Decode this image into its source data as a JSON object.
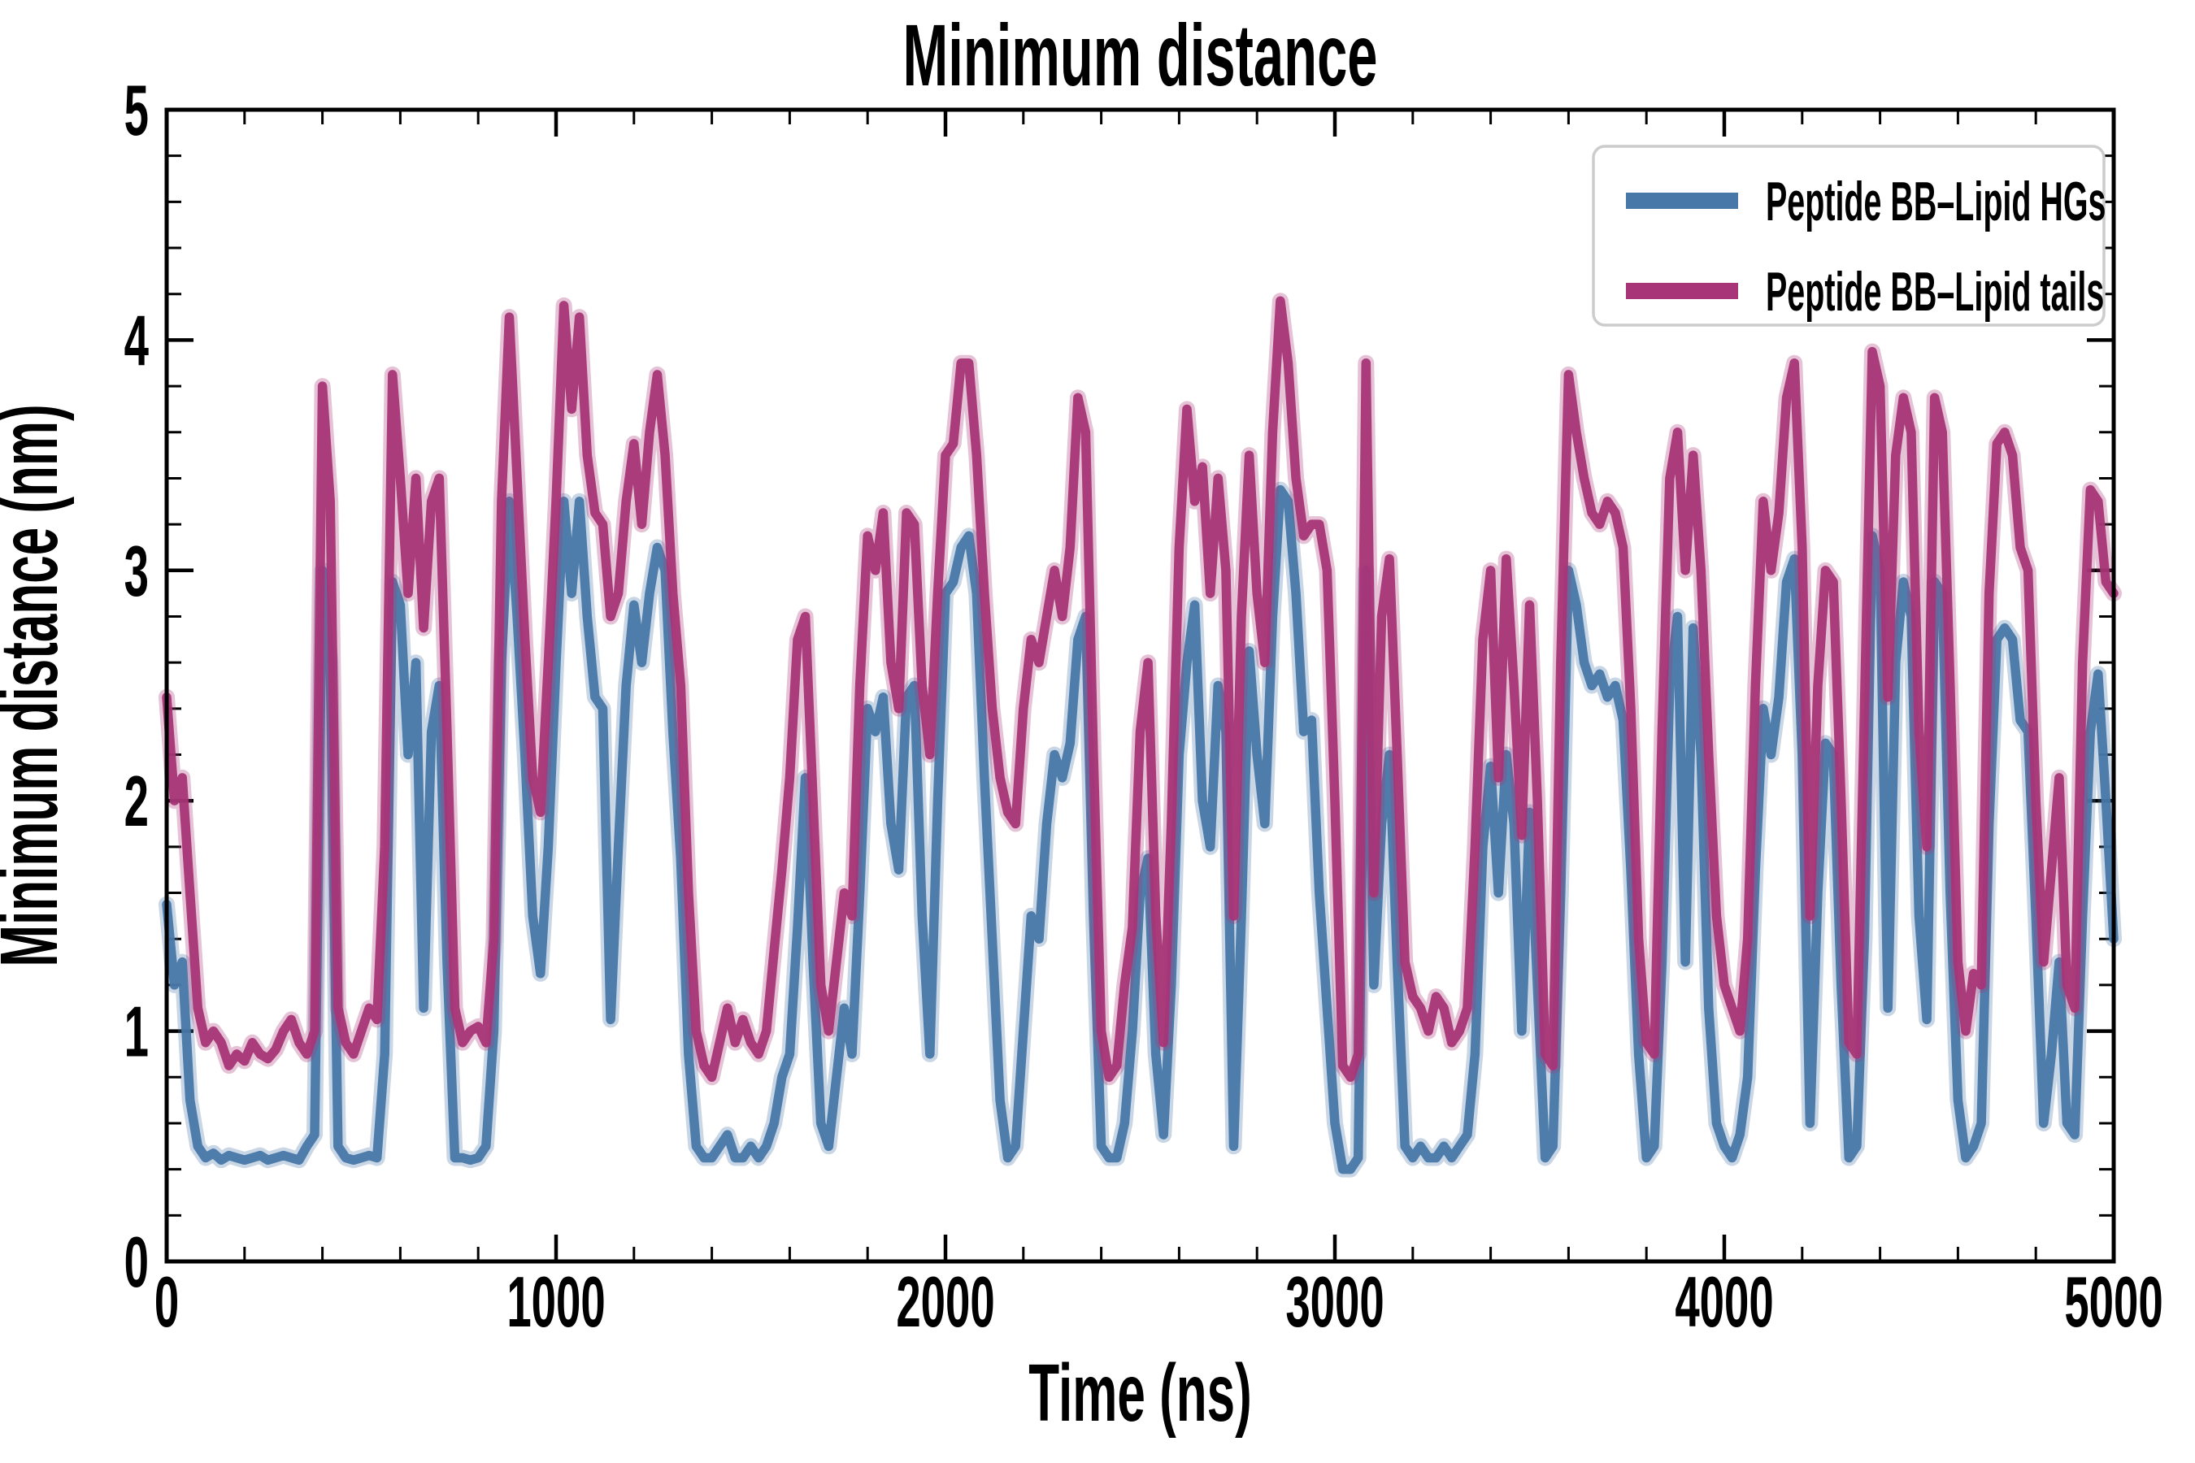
{
  "figure": {
    "title": "Minimum distance",
    "xlabel": "Time (ns)",
    "ylabel": "Minimum distance (nm)"
  },
  "legend": {
    "entries": [
      {
        "label": "Peptide BB–Lipid HGs",
        "color": "#4878a8"
      },
      {
        "label": "Peptide BB–Lipid tails",
        "color": "#a83577"
      }
    ],
    "position": "upper right",
    "border_color": "#cccccc"
  },
  "chart_data": {
    "type": "line",
    "title": "Minimum distance",
    "xlabel": "Time (ns)",
    "ylabel": "Minimum distance (nm)",
    "xlim": [
      0,
      5000
    ],
    "ylim": [
      0,
      5
    ],
    "xticks": [
      0,
      1000,
      2000,
      3000,
      4000,
      5000
    ],
    "yticks": [
      0,
      1,
      2,
      3,
      4,
      5
    ],
    "x_minor_step": 200,
    "y_minor_step": 0.2,
    "grid": false,
    "legend_position": "upper right",
    "x_step_ns": 20,
    "series": [
      {
        "name": "Peptide BB–Lipid HGs",
        "color": "#4878a8",
        "values": [
          1.55,
          1.2,
          1.3,
          0.7,
          0.5,
          0.45,
          0.47,
          0.44,
          0.46,
          0.45,
          0.44,
          0.45,
          0.46,
          0.44,
          0.45,
          0.46,
          0.45,
          0.44,
          0.5,
          0.55,
          3.0,
          2.6,
          0.5,
          0.45,
          0.44,
          0.45,
          0.46,
          0.45,
          0.9,
          2.95,
          2.85,
          2.2,
          2.6,
          1.1,
          2.3,
          2.5,
          1.3,
          0.45,
          0.45,
          0.44,
          0.45,
          0.5,
          1.0,
          2.6,
          3.3,
          2.8,
          2.2,
          1.5,
          1.25,
          1.8,
          2.6,
          3.3,
          2.9,
          3.3,
          2.8,
          2.45,
          2.4,
          1.05,
          1.8,
          2.5,
          2.85,
          2.6,
          2.9,
          3.1,
          3.0,
          2.3,
          1.75,
          0.9,
          0.5,
          0.45,
          0.45,
          0.5,
          0.55,
          0.45,
          0.45,
          0.5,
          0.45,
          0.5,
          0.6,
          0.8,
          0.9,
          1.45,
          2.1,
          1.3,
          0.6,
          0.5,
          0.8,
          1.1,
          0.9,
          1.6,
          2.4,
          2.3,
          2.45,
          1.9,
          1.7,
          2.45,
          2.5,
          1.5,
          0.9,
          2.0,
          2.9,
          2.95,
          3.1,
          3.15,
          2.9,
          2.1,
          1.4,
          0.7,
          0.45,
          0.5,
          1.0,
          1.5,
          1.4,
          1.9,
          2.2,
          2.1,
          2.25,
          2.7,
          2.8,
          1.5,
          0.5,
          0.45,
          0.45,
          0.6,
          1.0,
          1.6,
          1.75,
          0.9,
          0.55,
          1.2,
          2.2,
          2.6,
          2.85,
          2.0,
          1.8,
          2.5,
          2.3,
          0.5,
          1.5,
          2.65,
          2.2,
          1.9,
          2.8,
          3.35,
          3.3,
          2.9,
          2.3,
          2.35,
          1.6,
          1.1,
          0.6,
          0.4,
          0.4,
          0.45,
          3.0,
          1.2,
          1.9,
          2.2,
          1.3,
          0.5,
          0.45,
          0.5,
          0.45,
          0.45,
          0.5,
          0.45,
          0.5,
          0.55,
          0.9,
          1.8,
          2.15,
          1.6,
          2.2,
          1.9,
          1.0,
          1.95,
          1.2,
          0.45,
          0.5,
          1.6,
          3.0,
          2.85,
          2.6,
          2.5,
          2.55,
          2.45,
          2.5,
          2.35,
          1.7,
          0.9,
          0.45,
          0.5,
          1.3,
          2.5,
          2.8,
          1.3,
          2.75,
          2.2,
          1.1,
          0.6,
          0.5,
          0.45,
          0.55,
          0.8,
          1.7,
          2.4,
          2.2,
          2.45,
          2.95,
          3.05,
          2.2,
          0.6,
          1.6,
          2.25,
          2.2,
          1.2,
          0.45,
          0.5,
          1.4,
          3.15,
          3.0,
          1.1,
          2.6,
          2.95,
          2.8,
          1.5,
          1.05,
          2.95,
          2.9,
          1.6,
          0.7,
          0.45,
          0.5,
          0.6,
          1.9,
          2.7,
          2.75,
          2.7,
          2.35,
          2.3,
          1.5,
          0.6,
          0.9,
          1.3,
          0.6,
          0.55,
          1.5,
          2.3,
          2.55,
          2.0,
          1.4
        ]
      },
      {
        "name": "Peptide BB–Lipid tails",
        "color": "#a83577",
        "values": [
          2.45,
          2.0,
          2.1,
          1.6,
          1.1,
          0.95,
          1.0,
          0.95,
          0.85,
          0.9,
          0.87,
          0.95,
          0.9,
          0.88,
          0.92,
          1.0,
          1.05,
          0.95,
          0.9,
          1.0,
          3.8,
          3.3,
          1.1,
          0.95,
          0.9,
          1.0,
          1.1,
          1.05,
          1.8,
          3.85,
          3.4,
          2.9,
          3.4,
          2.75,
          3.3,
          3.4,
          2.3,
          1.1,
          0.95,
          1.0,
          1.02,
          0.95,
          1.4,
          3.3,
          4.1,
          3.4,
          2.7,
          2.1,
          1.95,
          2.6,
          3.3,
          4.15,
          3.7,
          4.1,
          3.5,
          3.25,
          3.2,
          2.8,
          2.9,
          3.3,
          3.55,
          3.2,
          3.6,
          3.85,
          3.5,
          2.9,
          2.5,
          1.6,
          1.0,
          0.85,
          0.8,
          0.95,
          1.1,
          0.95,
          1.05,
          0.95,
          0.9,
          1.0,
          1.35,
          1.7,
          2.1,
          2.7,
          2.8,
          2.0,
          1.2,
          1.0,
          1.3,
          1.6,
          1.5,
          2.5,
          3.15,
          3.0,
          3.25,
          2.6,
          2.4,
          3.25,
          3.2,
          2.5,
          2.2,
          2.9,
          3.5,
          3.55,
          3.9,
          3.9,
          3.5,
          2.9,
          2.4,
          2.1,
          1.95,
          1.9,
          2.4,
          2.7,
          2.6,
          2.8,
          3.0,
          2.8,
          3.1,
          3.75,
          3.6,
          2.2,
          1.0,
          0.8,
          0.85,
          1.2,
          1.45,
          2.3,
          2.6,
          1.5,
          0.95,
          1.9,
          3.1,
          3.7,
          3.3,
          3.45,
          2.9,
          3.4,
          3.0,
          1.5,
          2.8,
          3.5,
          2.9,
          2.6,
          3.6,
          4.17,
          3.9,
          3.4,
          3.15,
          3.2,
          3.2,
          3.0,
          2.0,
          0.85,
          0.8,
          0.9,
          3.9,
          1.6,
          2.8,
          3.05,
          2.2,
          1.3,
          1.15,
          1.1,
          1.0,
          1.15,
          1.1,
          0.95,
          1.0,
          1.1,
          1.8,
          2.7,
          3.0,
          2.1,
          3.05,
          2.5,
          1.85,
          2.85,
          2.0,
          0.9,
          0.85,
          2.6,
          3.85,
          3.6,
          3.4,
          3.25,
          3.2,
          3.3,
          3.25,
          3.1,
          2.4,
          1.4,
          0.95,
          0.9,
          2.3,
          3.4,
          3.6,
          3.0,
          3.5,
          3.0,
          2.2,
          1.5,
          1.2,
          1.1,
          1.0,
          1.4,
          2.5,
          3.3,
          3.0,
          3.25,
          3.75,
          3.9,
          3.1,
          1.5,
          2.5,
          3.0,
          2.95,
          2.0,
          0.95,
          0.9,
          2.4,
          3.95,
          3.8,
          2.45,
          3.5,
          3.75,
          3.6,
          2.3,
          1.8,
          3.75,
          3.6,
          2.5,
          1.3,
          1.0,
          1.25,
          1.2,
          2.9,
          3.55,
          3.6,
          3.5,
          3.1,
          3.0,
          2.0,
          1.3,
          1.7,
          2.1,
          1.2,
          1.1,
          2.6,
          3.35,
          3.3,
          2.95,
          2.9
        ]
      }
    ]
  }
}
